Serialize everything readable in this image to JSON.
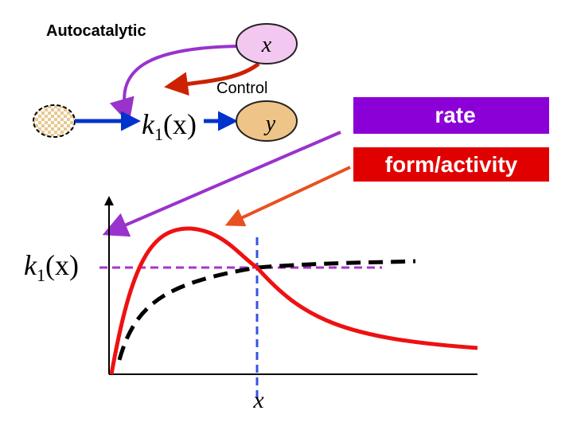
{
  "labels": {
    "autocatalytic": "Autocatalytic",
    "control": "Control",
    "rate": "rate",
    "form_activity": "form/activity"
  },
  "nodes": {
    "x": "x",
    "y": "y"
  },
  "rate_function": {
    "base": "k",
    "sub": "1",
    "arg": "(x)"
  },
  "plot": {
    "y_label": {
      "base": "k",
      "sub": "1",
      "arg": "(x)"
    },
    "x_label": "x"
  }
}
